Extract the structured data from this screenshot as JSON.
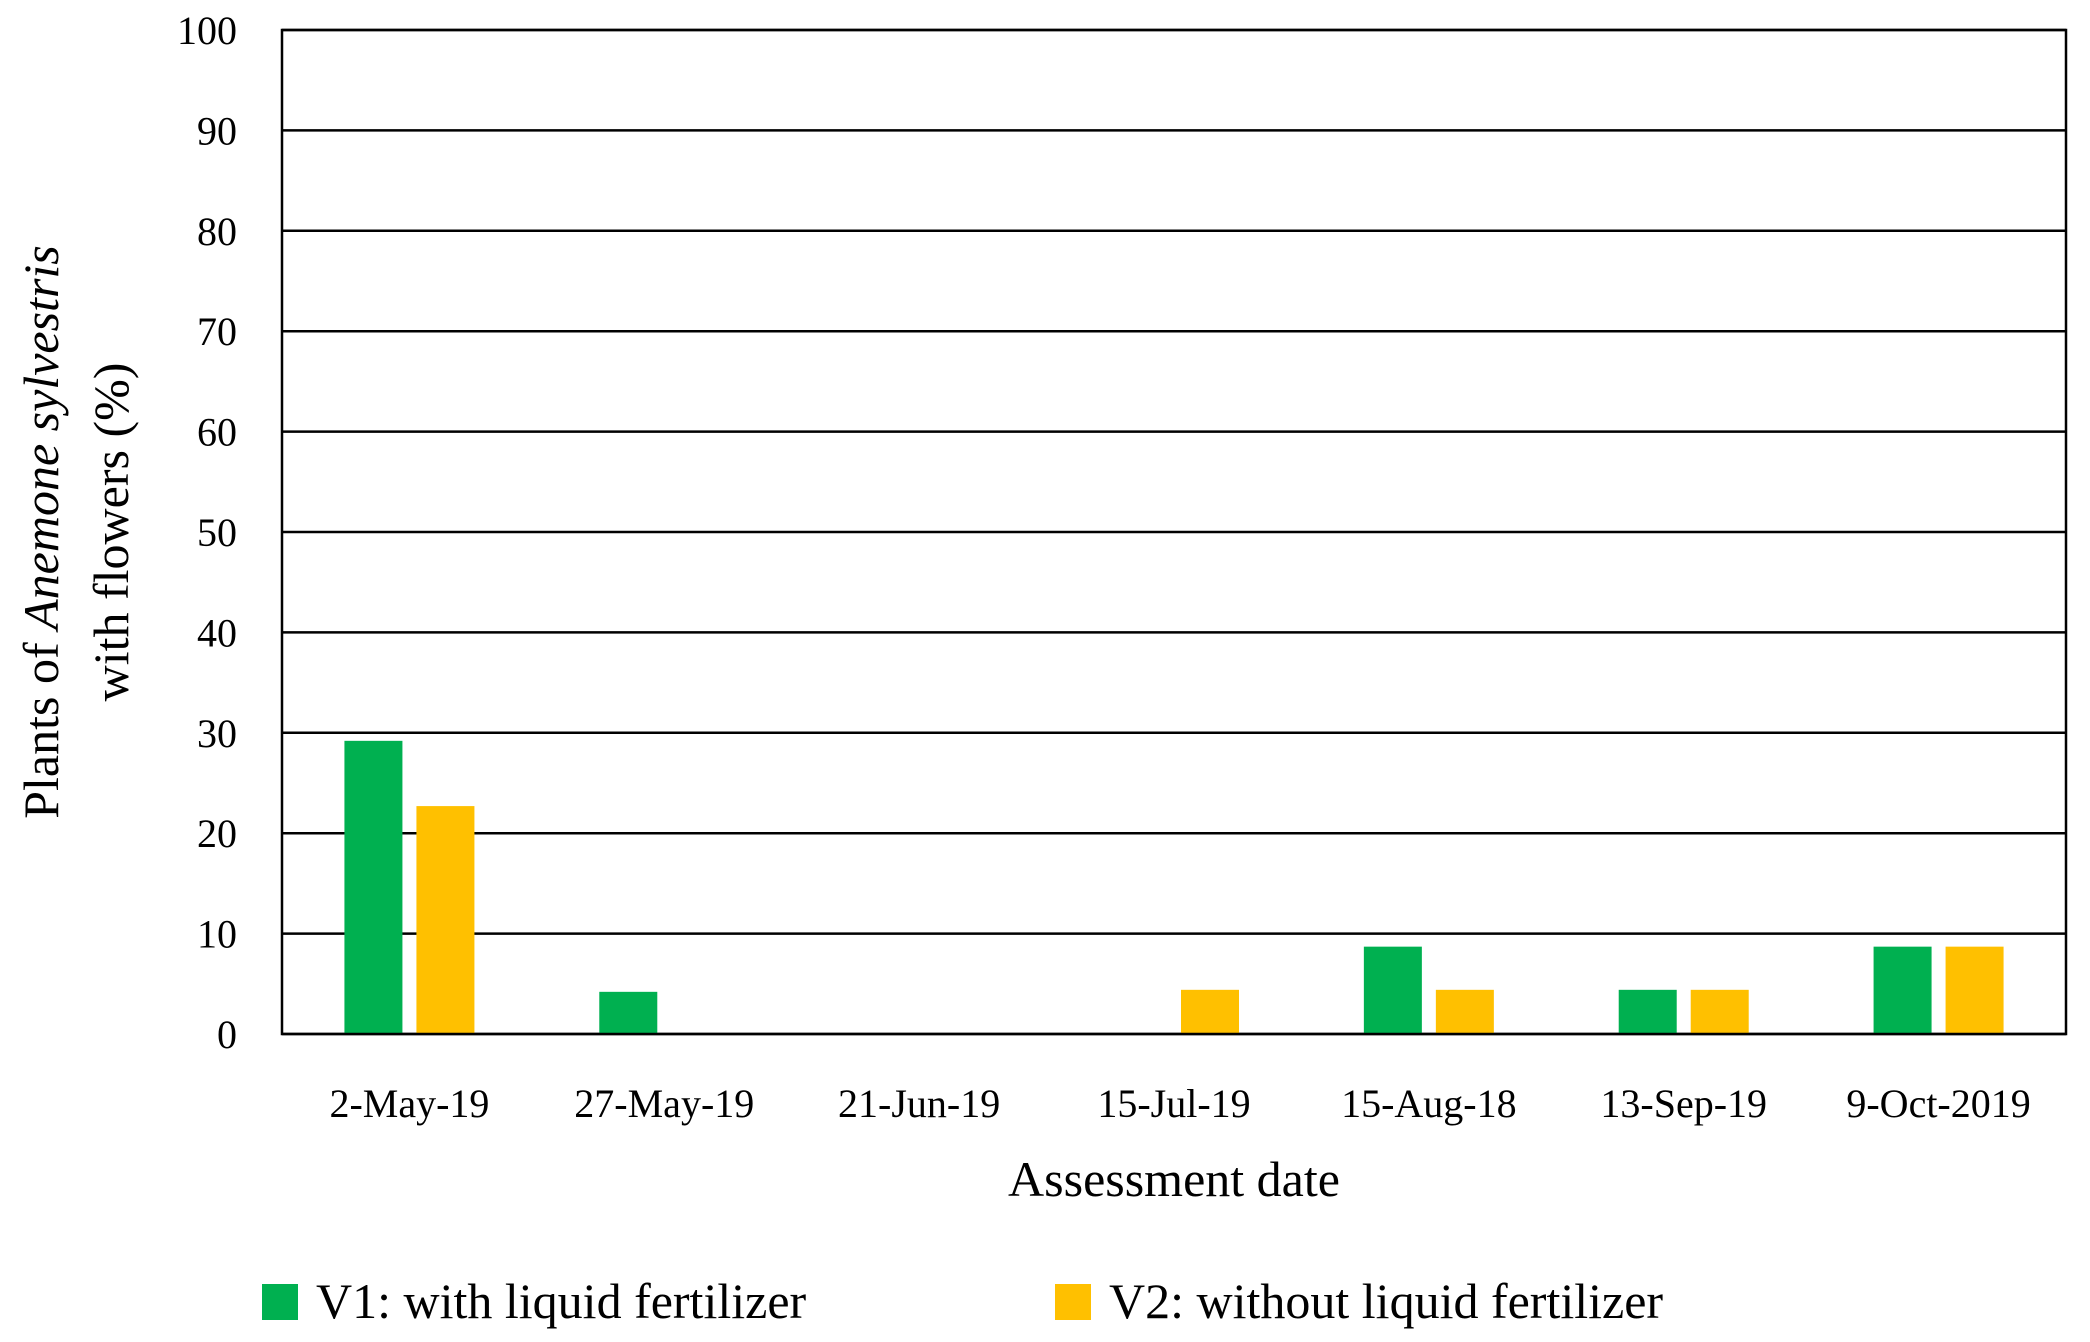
{
  "chart_data": {
    "type": "bar",
    "title": "",
    "xlabel": "Assessment date",
    "ylabel": {
      "lines": [
        [
          {
            "text": "Plants of ",
            "italic": false
          },
          {
            "text": "Anemone sylvestris",
            "italic": true
          }
        ],
        [
          {
            "text": "with flowers (%)",
            "italic": false
          }
        ]
      ]
    },
    "ylim": [
      0,
      100
    ],
    "yticks": [
      "0",
      "10",
      "20",
      "30",
      "40",
      "50",
      "60",
      "70",
      "80",
      "90",
      "100"
    ],
    "grid": true,
    "legend_position": "bottom",
    "categories": [
      "2-May-19",
      "27-May-19",
      "21-Jun-19",
      "15-Jul-19",
      "15-Aug-18",
      "13-Sep-19",
      "9-Oct-2019"
    ],
    "series": [
      {
        "name": "V1: with liquid fertilizer",
        "color": "#00b050",
        "values": [
          29.2,
          4.2,
          0,
          0,
          8.7,
          4.4,
          8.7
        ]
      },
      {
        "name": "V2: without liquid fertilizer",
        "color": "#ffc000",
        "values": [
          22.7,
          0,
          0,
          4.4,
          4.4,
          4.4,
          8.7
        ]
      }
    ]
  }
}
